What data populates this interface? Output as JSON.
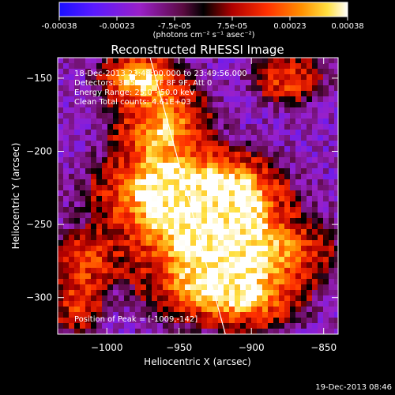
{
  "colorbar": {
    "ticks": [
      "-0.00038",
      "-0.00023",
      "-7.5e-05",
      "7.5e-05",
      "0.00023",
      "0.00038"
    ],
    "unit_label": "(photons cm⁻² s⁻¹ asec⁻²)",
    "range": [
      -0.00038,
      0.00038
    ]
  },
  "annotations": {
    "time_range": "18-Dec-2013 23:48:00.000 to 23:49:56.000",
    "detectors": "Detectors: 3F 5F 6F 7F 8F 9F, Att 0",
    "energy": "Energy Range: 25.0 - 50.0 keV",
    "clean": "Clean     Total counts: 4.61E+03",
    "peak": "Position of Peak = [-1009,-142]"
  },
  "footer": {
    "timestamp": "19-Dec-2013 08:46"
  },
  "chart_data": {
    "type": "heatmap",
    "title": "Reconstructed RHESSI Image",
    "xlabel": "Heliocentric X (arcsec)",
    "ylabel": "Heliocentric Y (arcsec)",
    "xlim": [
      -1034,
      -840
    ],
    "ylim": [
      -325,
      -136
    ],
    "x_ticks": [
      -1000,
      -950,
      -900,
      -850
    ],
    "x_tick_labels": [
      "−1000",
      "−950",
      "−900",
      "−850"
    ],
    "y_ticks": [
      -150,
      -200,
      -250,
      -300
    ],
    "y_tick_labels": [
      "−150",
      "−200",
      "−250",
      "−300"
    ],
    "colormap": "rainbow-hot (black-purple-red-orange-yellow-white)",
    "limb_line": {
      "from": [
        -970,
        -136
      ],
      "to": [
        -918,
        -325
      ]
    },
    "peak_position": [
      -1009,
      -142
    ],
    "emission_sources": [
      {
        "x": -978,
        "y": -150,
        "sx": 14,
        "sy": 9,
        "amp": 0.85
      },
      {
        "x": -962,
        "y": -185,
        "sx": 18,
        "sy": 20,
        "amp": 0.8
      },
      {
        "x": -953,
        "y": -225,
        "sx": 28,
        "sy": 14,
        "amp": 0.85
      },
      {
        "x": -938,
        "y": -248,
        "sx": 32,
        "sy": 18,
        "amp": 0.95
      },
      {
        "x": -912,
        "y": -232,
        "sx": 18,
        "sy": 16,
        "amp": 0.75
      },
      {
        "x": -900,
        "y": -270,
        "sx": 30,
        "sy": 14,
        "amp": 0.8
      },
      {
        "x": -905,
        "y": -300,
        "sx": 22,
        "sy": 12,
        "amp": 0.7
      },
      {
        "x": -935,
        "y": -290,
        "sx": 24,
        "sy": 14,
        "amp": 0.6
      },
      {
        "x": -1015,
        "y": -275,
        "sx": 14,
        "sy": 12,
        "amp": 0.45
      },
      {
        "x": -1020,
        "y": -305,
        "sx": 10,
        "sy": 12,
        "amp": 0.4
      },
      {
        "x": -875,
        "y": -150,
        "sx": 14,
        "sy": 10,
        "amp": 0.45
      }
    ]
  }
}
